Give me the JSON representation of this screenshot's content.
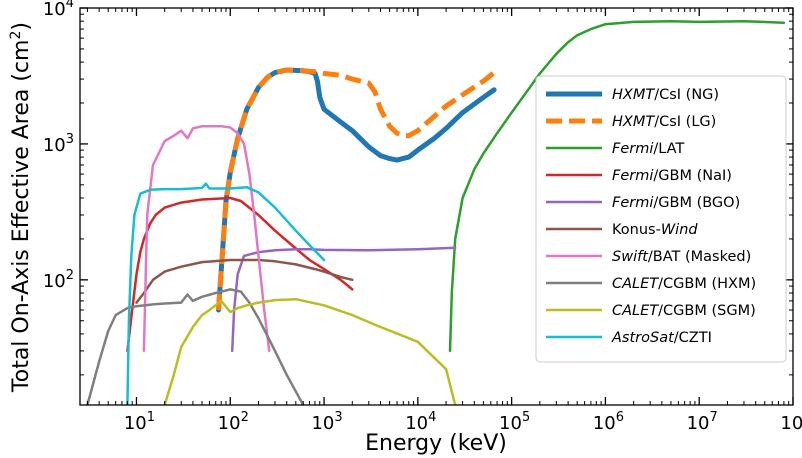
{
  "chart_data": {
    "type": "line",
    "xlabel": "Energy (keV)",
    "ylabel": "Total On-Axis Effective Area (cm",
    "ylabel_sup": "2",
    "ylabel_close": ")",
    "xscale": "log",
    "yscale": "log",
    "xlim": [
      2.5,
      100000000
    ],
    "ylim": [
      12,
      10000
    ],
    "x_ticks": [
      {
        "base": "10",
        "exp": "1"
      },
      {
        "base": "10",
        "exp": "2"
      },
      {
        "base": "10",
        "exp": "3"
      },
      {
        "base": "10",
        "exp": "4"
      },
      {
        "base": "10",
        "exp": "5"
      },
      {
        "base": "10",
        "exp": "6"
      },
      {
        "base": "10",
        "exp": "7"
      },
      {
        "base": "10",
        "exp": "8"
      }
    ],
    "y_ticks": [
      {
        "base": "10",
        "exp": "2"
      },
      {
        "base": "10",
        "exp": "3"
      },
      {
        "base": "10",
        "exp": "4"
      }
    ],
    "legend_position": "right",
    "series": [
      {
        "name": "HXMT",
        "suffix": "/CsI (NG)",
        "italic": "prefix",
        "color": "#1f77b4",
        "dash": "solid",
        "width": 5,
        "points": [
          [
            75,
            60
          ],
          [
            90,
            380
          ],
          [
            100,
            620
          ],
          [
            120,
            1100
          ],
          [
            150,
            1800
          ],
          [
            200,
            2600
          ],
          [
            250,
            3100
          ],
          [
            300,
            3350
          ],
          [
            400,
            3500
          ],
          [
            600,
            3450
          ],
          [
            700,
            3400
          ],
          [
            800,
            3300
          ],
          [
            850,
            2900
          ],
          [
            900,
            2200
          ],
          [
            1000,
            1800
          ],
          [
            1500,
            1450
          ],
          [
            2000,
            1250
          ],
          [
            3000,
            950
          ],
          [
            4000,
            820
          ],
          [
            5000,
            780
          ],
          [
            6000,
            760
          ],
          [
            8000,
            800
          ],
          [
            10000,
            900
          ],
          [
            15000,
            1100
          ],
          [
            20000,
            1300
          ],
          [
            30000,
            1700
          ],
          [
            50000,
            2200
          ],
          [
            65000,
            2500
          ]
        ]
      },
      {
        "name": "HXMT",
        "suffix": "/CsI (LG)",
        "italic": "prefix",
        "color": "#ff7f0e",
        "dash": "dashed",
        "width": 5,
        "points": [
          [
            75,
            60
          ],
          [
            90,
            380
          ],
          [
            100,
            620
          ],
          [
            120,
            1100
          ],
          [
            150,
            1800
          ],
          [
            200,
            2600
          ],
          [
            250,
            3100
          ],
          [
            300,
            3350
          ],
          [
            400,
            3500
          ],
          [
            600,
            3450
          ],
          [
            800,
            3400
          ],
          [
            1000,
            3300
          ],
          [
            1500,
            3200
          ],
          [
            2000,
            3000
          ],
          [
            3000,
            2800
          ],
          [
            3500,
            2400
          ],
          [
            4000,
            1800
          ],
          [
            5000,
            1350
          ],
          [
            6000,
            1200
          ],
          [
            7000,
            1150
          ],
          [
            8000,
            1150
          ],
          [
            10000,
            1250
          ],
          [
            15000,
            1600
          ],
          [
            20000,
            1900
          ],
          [
            30000,
            2300
          ],
          [
            50000,
            2900
          ],
          [
            65000,
            3350
          ]
        ]
      },
      {
        "name": "Fermi",
        "suffix": "/LAT",
        "italic": "prefix",
        "color": "#2ca02c",
        "dash": "solid",
        "width": 2.5,
        "points": [
          [
            22000,
            30
          ],
          [
            23000,
            80
          ],
          [
            25000,
            200
          ],
          [
            30000,
            400
          ],
          [
            40000,
            650
          ],
          [
            50000,
            850
          ],
          [
            70000,
            1200
          ],
          [
            100000,
            1700
          ],
          [
            150000,
            2500
          ],
          [
            200000,
            3300
          ],
          [
            300000,
            4600
          ],
          [
            400000,
            5600
          ],
          [
            500000,
            6300
          ],
          [
            700000,
            7000
          ],
          [
            1000000,
            7600
          ],
          [
            2000000,
            7900
          ],
          [
            5000000,
            8000
          ],
          [
            10000000,
            7900
          ],
          [
            30000000,
            8000
          ],
          [
            80000000,
            7800
          ]
        ]
      },
      {
        "name": "Fermi",
        "suffix": "/GBM (NaI)",
        "italic": "prefix",
        "color": "#d62728",
        "dash": "solid",
        "width": 2.5,
        "points": [
          [
            8,
            30
          ],
          [
            9,
            60
          ],
          [
            10,
            110
          ],
          [
            11,
            160
          ],
          [
            12,
            200
          ],
          [
            14,
            260
          ],
          [
            16,
            300
          ],
          [
            20,
            340
          ],
          [
            30,
            370
          ],
          [
            50,
            390
          ],
          [
            100,
            400
          ],
          [
            130,
            380
          ],
          [
            200,
            300
          ],
          [
            300,
            230
          ],
          [
            500,
            170
          ],
          [
            700,
            140
          ],
          [
            1000,
            120
          ],
          [
            1500,
            100
          ],
          [
            2000,
            85
          ]
        ]
      },
      {
        "name": "Fermi",
        "suffix": "/GBM (BGO)",
        "italic": "prefix",
        "color": "#9467bd",
        "dash": "solid",
        "width": 2.5,
        "points": [
          [
            105,
            30
          ],
          [
            110,
            60
          ],
          [
            120,
            110
          ],
          [
            140,
            150
          ],
          [
            200,
            160
          ],
          [
            300,
            165
          ],
          [
            500,
            168
          ],
          [
            700,
            168
          ],
          [
            1000,
            166
          ],
          [
            3000,
            165
          ],
          [
            10000,
            168
          ],
          [
            25000,
            172
          ]
        ]
      },
      {
        "name": "Konus-",
        "suffix": "Wind",
        "italic": "suffix",
        "color": "#8c564b",
        "dash": "solid",
        "width": 2.5,
        "points": [
          [
            10,
            68
          ],
          [
            12,
            80
          ],
          [
            15,
            100
          ],
          [
            20,
            115
          ],
          [
            30,
            125
          ],
          [
            50,
            135
          ],
          [
            100,
            140
          ],
          [
            200,
            140
          ],
          [
            300,
            137
          ],
          [
            500,
            130
          ],
          [
            800,
            120
          ],
          [
            1000,
            115
          ],
          [
            1500,
            105
          ],
          [
            2000,
            100
          ]
        ]
      },
      {
        "name": "Swift",
        "suffix": "/BAT (Masked)",
        "italic": "prefix",
        "color": "#e377c2",
        "dash": "solid",
        "width": 2.5,
        "points": [
          [
            12,
            30
          ],
          [
            12.5,
            100
          ],
          [
            13,
            300
          ],
          [
            15,
            700
          ],
          [
            20,
            1050
          ],
          [
            25,
            1150
          ],
          [
            30,
            1250
          ],
          [
            35,
            1100
          ],
          [
            40,
            1300
          ],
          [
            50,
            1350
          ],
          [
            80,
            1350
          ],
          [
            100,
            1320
          ],
          [
            120,
            1200
          ],
          [
            140,
            1000
          ],
          [
            160,
            600
          ],
          [
            180,
            300
          ],
          [
            200,
            150
          ],
          [
            230,
            60
          ],
          [
            260,
            30
          ]
        ]
      },
      {
        "name": "CALET",
        "suffix": "/CGBM (HXM)",
        "italic": "prefix",
        "color": "#7f7f7f",
        "dash": "solid",
        "width": 2.5,
        "points": [
          [
            3,
            12
          ],
          [
            4,
            25
          ],
          [
            5,
            42
          ],
          [
            6,
            55
          ],
          [
            8,
            62
          ],
          [
            10,
            64
          ],
          [
            15,
            66
          ],
          [
            20,
            67
          ],
          [
            30,
            68
          ],
          [
            35,
            78
          ],
          [
            40,
            70
          ],
          [
            50,
            75
          ],
          [
            70,
            80
          ],
          [
            100,
            85
          ],
          [
            130,
            82
          ],
          [
            160,
            68
          ],
          [
            200,
            52
          ],
          [
            300,
            30
          ],
          [
            400,
            20
          ],
          [
            600,
            12
          ]
        ]
      },
      {
        "name": "CALET",
        "suffix": "/CGBM (SGM)",
        "italic": "prefix",
        "color": "#bcbd22",
        "dash": "solid",
        "width": 2.5,
        "points": [
          [
            20,
            12
          ],
          [
            25,
            20
          ],
          [
            30,
            32
          ],
          [
            40,
            45
          ],
          [
            50,
            55
          ],
          [
            60,
            60
          ],
          [
            70,
            65
          ],
          [
            80,
            70
          ],
          [
            100,
            58
          ],
          [
            120,
            62
          ],
          [
            150,
            65
          ],
          [
            200,
            68
          ],
          [
            300,
            71
          ],
          [
            500,
            72
          ],
          [
            1000,
            65
          ],
          [
            2000,
            55
          ],
          [
            4000,
            45
          ],
          [
            10000,
            35
          ],
          [
            20000,
            22
          ],
          [
            25000,
            12
          ]
        ]
      },
      {
        "name": "AstroSat",
        "suffix": "/CZTI",
        "italic": "prefix",
        "color": "#17becf",
        "dash": "solid",
        "width": 2.5,
        "points": [
          [
            8,
            12
          ],
          [
            8.3,
            50
          ],
          [
            8.8,
            150
          ],
          [
            9.5,
            300
          ],
          [
            11,
            430
          ],
          [
            14,
            460
          ],
          [
            20,
            465
          ],
          [
            30,
            465
          ],
          [
            40,
            470
          ],
          [
            50,
            475
          ],
          [
            55,
            510
          ],
          [
            60,
            470
          ],
          [
            100,
            470
          ],
          [
            150,
            480
          ],
          [
            200,
            440
          ],
          [
            300,
            340
          ],
          [
            500,
            230
          ],
          [
            700,
            180
          ],
          [
            1000,
            140
          ]
        ]
      }
    ]
  }
}
